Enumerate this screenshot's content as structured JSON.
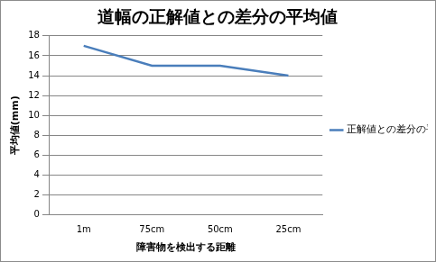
{
  "chart_data": {
    "type": "line",
    "title": "道幅の正解値との差分の平均値",
    "x_label": "障害物を検出する距離",
    "y_label": "平均値(mm)",
    "categories": [
      "1m",
      "75cm",
      "50cm",
      "25cm"
    ],
    "series": [
      {
        "name": "正解値との差分の平均値",
        "color": "#4a7ebb",
        "values": [
          17,
          15,
          15,
          14
        ],
        "marker": "none"
      }
    ],
    "ylim": [
      0,
      18
    ],
    "yticks": [
      0,
      2,
      4,
      6,
      8,
      10,
      12,
      14,
      16,
      18
    ],
    "grid": true,
    "legend": "right"
  }
}
